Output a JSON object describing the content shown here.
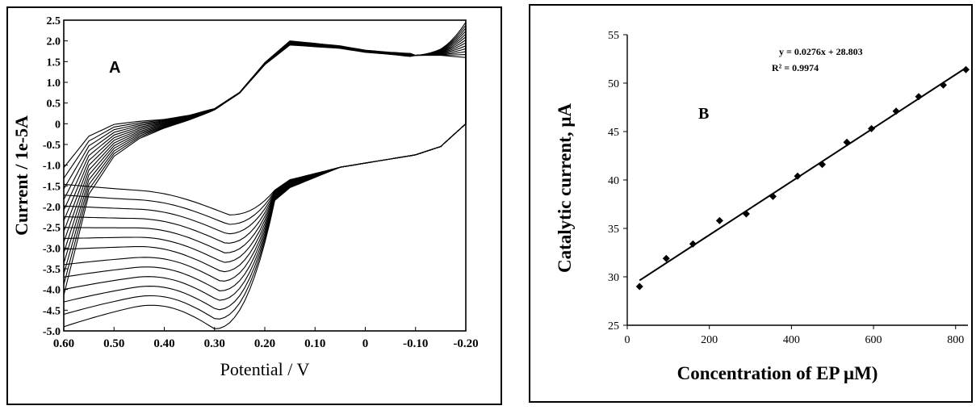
{
  "chart_data": [
    {
      "type": "line",
      "panel_label": "A",
      "xlabel": "Potential / V",
      "ylabel": "Current / 1e-5A",
      "xlim": [
        0.6,
        -0.2
      ],
      "ylim": [
        -5.0,
        2.5
      ],
      "x_reversed": true,
      "x_ticks": [
        "0.60",
        "0.50",
        "0.40",
        "0.30",
        "0.20",
        "0.10",
        "0",
        "-0.10",
        "-0.20"
      ],
      "x_tick_values": [
        0.6,
        0.5,
        0.4,
        0.3,
        0.2,
        0.1,
        0,
        -0.1,
        -0.2
      ],
      "y_ticks": [
        "2.5",
        "2.0",
        "1.5",
        "1.0",
        "0.5",
        "0",
        "-0.5",
        "-1.0",
        "-1.5",
        "-2.0",
        "-2.5",
        "-3.0",
        "-3.5",
        "-4.0",
        "-4.5",
        "-5.0"
      ],
      "y_tick_values": [
        2.5,
        2.0,
        1.5,
        1.0,
        0.5,
        0,
        -0.5,
        -1.0,
        -1.5,
        -2.0,
        -2.5,
        -3.0,
        -3.5,
        -4.0,
        -4.5,
        -5.0
      ],
      "grid": false,
      "curve_count": 13,
      "anodic_branch": {
        "x": [
          0.6,
          0.55,
          0.5,
          0.45,
          0.4,
          0.35,
          0.3,
          0.25,
          0.2,
          0.15,
          0.1,
          0.05,
          0,
          -0.05,
          -0.1,
          -0.15,
          -0.2
        ],
        "base": [
          -2.6,
          -1.0,
          -0.4,
          -0.15,
          0.0,
          0.15,
          0.35,
          0.75,
          1.45,
          1.95,
          1.9,
          1.85,
          1.75,
          1.7,
          1.65,
          1.65,
          1.6
        ],
        "spread": [
          2.2,
          1.0,
          0.55,
          0.3,
          0.15,
          0.08,
          0.03,
          0.02,
          0.05,
          0.1,
          0.08,
          0.06,
          0.05,
          0.05,
          0.08,
          0.3,
          0.85
        ]
      },
      "cathodic_branch": {
        "x": [
          -0.2,
          -0.15,
          -0.1,
          -0.05,
          0,
          0.05,
          0.1,
          0.15,
          0.2,
          0.22,
          0.25,
          0.28,
          0.3,
          0.35,
          0.4,
          0.45,
          0.5,
          0.55,
          0.6
        ],
        "peak_current_range": [
          -2.2,
          -4.95
        ],
        "shared": [
          0.0,
          -0.55,
          -0.75,
          -0.85,
          -0.95,
          -1.05,
          -1.2,
          -1.35,
          -1.6
        ]
      }
    },
    {
      "type": "scatter",
      "panel_label": "B",
      "xlabel": "Concentration of EP μM)",
      "ylabel": "Catalytic current, μA",
      "xlim": [
        0,
        830
      ],
      "ylim": [
        25,
        55
      ],
      "x_ticks": [
        0,
        200,
        400,
        600,
        800
      ],
      "y_ticks": [
        25,
        30,
        35,
        40,
        45,
        50,
        55
      ],
      "grid": false,
      "points_x": [
        30,
        95,
        160,
        225,
        290,
        355,
        415,
        475,
        535,
        595,
        655,
        710,
        770,
        825
      ],
      "points_y": [
        29.0,
        31.9,
        33.4,
        35.8,
        36.5,
        38.3,
        40.4,
        41.6,
        43.9,
        45.3,
        47.1,
        48.6,
        49.8,
        51.4
      ],
      "trendline": {
        "slope": 0.0276,
        "intercept": 28.803,
        "x_range": [
          30,
          825
        ]
      },
      "equation": "y = 0.0276x + 28.803",
      "r2": "R² = 0.9974"
    }
  ]
}
